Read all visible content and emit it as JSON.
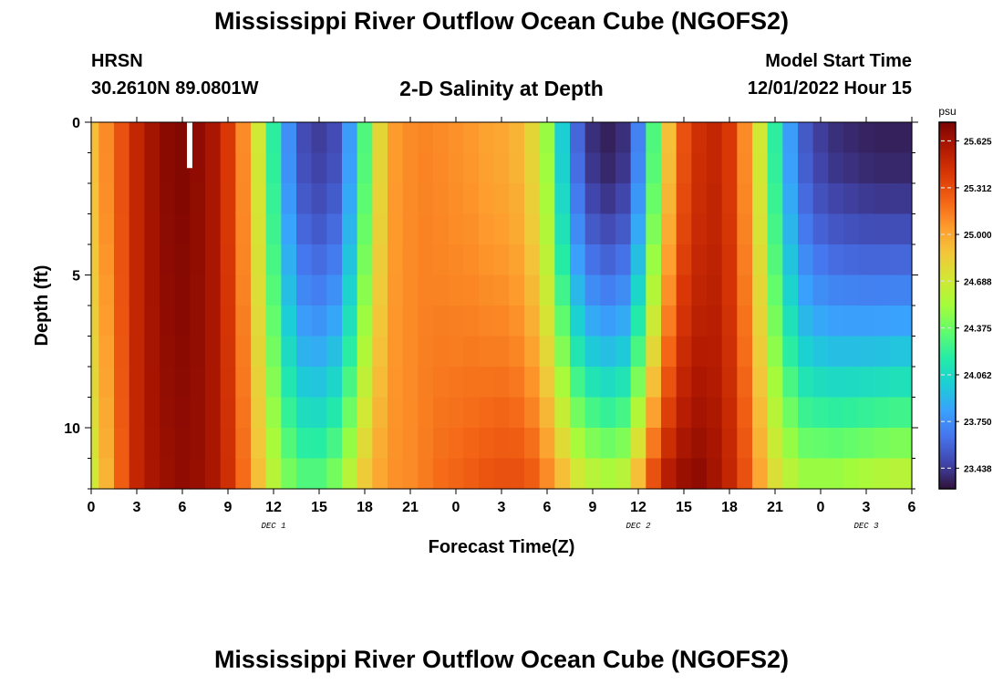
{
  "header": {
    "title": "Mississippi River Outflow Ocean Cube (NGOFS2)",
    "station": "HRSN",
    "coords": "30.2610N  89.0801W",
    "subtitle": "2-D Salinity at Depth",
    "model_start_label": "Model Start Time",
    "model_start_value": "12/01/2022 Hour 15"
  },
  "footer": {
    "title": "Mississippi River Outflow Ocean Cube (NGOFS2)"
  },
  "chart_data": {
    "type": "heatmap",
    "xlabel": "Forecast Time(Z)",
    "ylabel": "Depth (ft)",
    "x_tick_labels": [
      "0",
      "3",
      "6",
      "9",
      "12",
      "15",
      "18",
      "21",
      "0",
      "3",
      "6",
      "9",
      "12",
      "15",
      "18",
      "21",
      "0",
      "3",
      "6"
    ],
    "x_range_hours": [
      0,
      54
    ],
    "date_labels": [
      {
        "label": "DEC 1",
        "at_hour": 12
      },
      {
        "label": "DEC 2",
        "at_hour": 36
      },
      {
        "label": "DEC 3",
        "at_hour": 51
      }
    ],
    "y_tick_labels": [
      "0",
      "5",
      "10"
    ],
    "y_range": [
      0,
      12
    ],
    "depth_levels": [
      0.5,
      1.5,
      2.5,
      3.5,
      4.5,
      5.5,
      6.5,
      7.5,
      8.5,
      9.5,
      10.5,
      11.5
    ],
    "colorbar": {
      "unit": "psu",
      "min": 23.3,
      "max": 25.75,
      "tick_labels": [
        "25.625",
        "25.312",
        "25.000",
        "24.688",
        "24.375",
        "24.062",
        "23.750",
        "23.438"
      ]
    },
    "salinity_profile": {
      "note_hours": [
        0,
        1,
        2,
        3,
        4,
        5,
        6,
        7,
        8,
        9,
        10,
        11,
        12,
        13,
        14,
        15,
        16,
        17,
        18,
        19,
        20,
        21,
        22,
        23,
        24,
        25,
        26,
        27,
        28,
        29,
        30,
        31,
        32,
        33,
        34,
        35,
        36,
        37,
        38,
        39,
        40,
        41,
        42,
        43,
        44,
        45,
        46,
        47,
        48,
        49,
        50,
        51,
        52,
        53,
        54
      ],
      "surface_psu": [
        24.9,
        25.1,
        25.3,
        25.5,
        25.62,
        25.7,
        25.72,
        25.68,
        25.6,
        25.4,
        25.1,
        24.7,
        24.2,
        23.75,
        23.5,
        23.45,
        23.5,
        23.8,
        24.3,
        24.8,
        25.05,
        25.1,
        25.12,
        25.1,
        25.08,
        25.06,
        25.02,
        25.0,
        24.95,
        24.8,
        24.5,
        24.0,
        23.6,
        23.4,
        23.35,
        23.4,
        23.7,
        24.3,
        24.9,
        25.3,
        25.45,
        25.5,
        25.4,
        25.1,
        24.7,
        24.2,
        23.8,
        23.55,
        23.45,
        23.4,
        23.38,
        23.36,
        23.35,
        23.35,
        23.35
      ],
      "bottom_psu": [
        24.7,
        24.95,
        25.25,
        25.5,
        25.6,
        25.65,
        25.68,
        25.66,
        25.6,
        25.45,
        25.2,
        24.9,
        24.6,
        24.4,
        24.3,
        24.3,
        24.4,
        24.6,
        24.85,
        25.0,
        25.08,
        25.1,
        25.15,
        25.2,
        25.22,
        25.25,
        25.28,
        25.3,
        25.3,
        25.25,
        25.1,
        24.9,
        24.7,
        24.6,
        24.55,
        24.6,
        24.9,
        25.3,
        25.55,
        25.65,
        25.68,
        25.62,
        25.5,
        25.3,
        25.0,
        24.75,
        24.6,
        24.5,
        24.5,
        24.5,
        24.52,
        24.55,
        24.58,
        24.6,
        24.6
      ]
    }
  },
  "colors": {
    "colormap": [
      "#30123b",
      "#4145ab",
      "#4675ed",
      "#39a2fc",
      "#1bcfd4",
      "#24eca6",
      "#61fc6c",
      "#a4fc3b",
      "#d1e834",
      "#f3c63a",
      "#fe9b2d",
      "#f36315",
      "#d93806",
      "#b11901",
      "#7a0402"
    ]
  }
}
